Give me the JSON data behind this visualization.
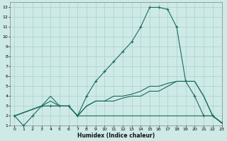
{
  "background_color": "#ceeae7",
  "grid_color": "#aacfcc",
  "line_color": "#1a6b5e",
  "xlabel": "Humidex (Indice chaleur)",
  "xlim": [
    -0.5,
    23
  ],
  "ylim": [
    1,
    13.5
  ],
  "xticks": [
    0,
    1,
    2,
    3,
    4,
    5,
    6,
    7,
    8,
    9,
    10,
    11,
    12,
    13,
    14,
    15,
    16,
    17,
    18,
    19,
    20,
    21,
    22,
    23
  ],
  "yticks": [
    1,
    2,
    3,
    4,
    5,
    6,
    7,
    8,
    9,
    10,
    11,
    12,
    13
  ],
  "main_line": {
    "x": [
      0,
      1,
      2,
      3,
      4,
      5,
      6,
      7,
      8,
      9,
      10,
      11,
      12,
      13,
      14,
      15,
      16,
      17,
      18,
      19,
      20,
      21,
      22,
      23
    ],
    "y": [
      2,
      1,
      2,
      3,
      3,
      3,
      3,
      2,
      4,
      5.5,
      6.5,
      7.5,
      8.5,
      9.5,
      11,
      13,
      13,
      12.8,
      11,
      5.5,
      4,
      2,
      2,
      1.3
    ]
  },
  "line2": {
    "x": [
      0,
      3,
      4,
      5,
      6,
      7,
      8,
      9,
      10,
      11,
      12,
      13,
      14,
      15,
      16,
      17,
      18,
      19,
      20,
      21,
      22,
      23
    ],
    "y": [
      2,
      3,
      3.5,
      3,
      3,
      2,
      3,
      3.5,
      3.5,
      4,
      4,
      4.2,
      4.5,
      5,
      5,
      5.3,
      5.5,
      5.5,
      5.5,
      4,
      2,
      1.3
    ]
  },
  "line3": {
    "x": [
      0,
      3,
      4,
      5,
      6,
      7,
      8,
      9,
      10,
      11,
      12,
      13,
      14,
      15,
      16,
      17,
      18,
      19,
      20,
      21,
      22,
      23
    ],
    "y": [
      2,
      3,
      4,
      3,
      3,
      2,
      3,
      3.5,
      3.5,
      3.5,
      3.8,
      4,
      4,
      4.5,
      4.5,
      5,
      5.5,
      5.5,
      5.5,
      4,
      2,
      1.3
    ]
  },
  "line4": {
    "x": [
      0,
      3,
      5,
      6,
      7,
      8,
      9,
      10,
      11,
      12,
      13,
      14,
      15,
      16,
      17,
      18,
      19,
      20,
      21,
      22,
      23
    ],
    "y": [
      2,
      3,
      3,
      3,
      2,
      2,
      2,
      2,
      2,
      2,
      2,
      2,
      2,
      2,
      2,
      2,
      2,
      2,
      2,
      2,
      1.3
    ]
  }
}
